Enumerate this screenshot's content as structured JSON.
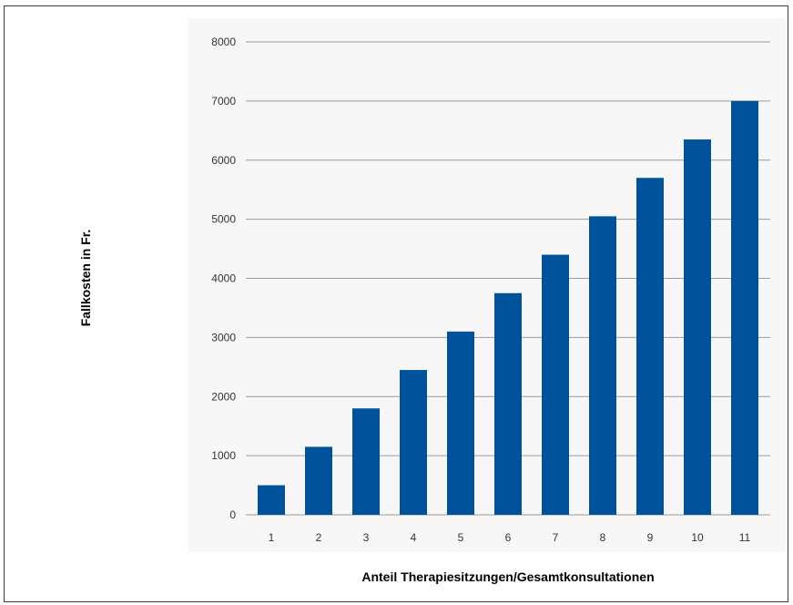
{
  "chart_data": {
    "type": "bar",
    "title": "",
    "xlabel": "Anteil Therapiesitzungen/Gesamtkonsultationen",
    "ylabel": "Fallkosten in Fr.",
    "categories": [
      "1",
      "2",
      "3",
      "4",
      "5",
      "6",
      "7",
      "8",
      "9",
      "10",
      "11"
    ],
    "values": [
      500,
      1150,
      1800,
      2450,
      3100,
      3750,
      4400,
      5050,
      5700,
      6350,
      7000
    ],
    "ylim": [
      0,
      8000
    ],
    "yticks": [
      "0",
      "1000",
      "2000",
      "3000",
      "4000",
      "5000",
      "6000",
      "7000",
      "8000"
    ],
    "grid": "horizontal",
    "legend": "none",
    "colors": {
      "bar": "#00539b",
      "grid": "#9a9a9a",
      "plot_background": "#f7f7f7"
    }
  }
}
